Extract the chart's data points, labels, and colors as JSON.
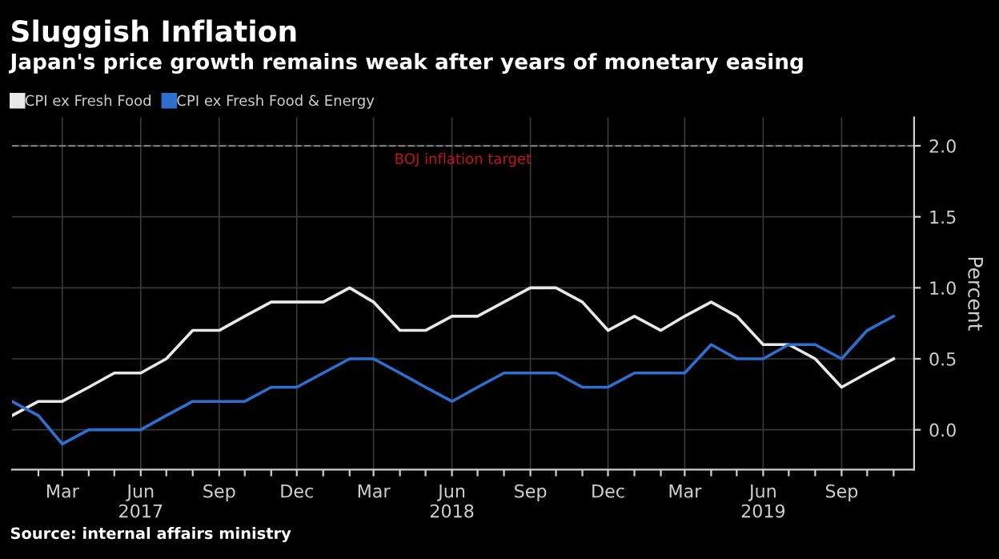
{
  "chart_data": {
    "type": "line",
    "title": "Sluggish Inflation",
    "subtitle": "Japan's price growth remains weak after years of monetary easing",
    "ylabel": "Percent",
    "x": [
      "2017-01",
      "2017-02",
      "2017-03",
      "2017-04",
      "2017-05",
      "2017-06",
      "2017-07",
      "2017-08",
      "2017-09",
      "2017-10",
      "2017-11",
      "2017-12",
      "2018-01",
      "2018-02",
      "2018-03",
      "2018-04",
      "2018-05",
      "2018-06",
      "2018-07",
      "2018-08",
      "2018-09",
      "2018-10",
      "2018-11",
      "2018-12",
      "2019-01",
      "2019-02",
      "2019-03",
      "2019-04",
      "2019-05",
      "2019-06",
      "2019-07",
      "2019-08",
      "2019-09",
      "2019-10",
      "2019-11"
    ],
    "series": [
      {
        "name": "CPI ex Fresh Food",
        "color": "#e8e8e8",
        "values": [
          0.1,
          0.2,
          0.2,
          0.3,
          0.4,
          0.4,
          0.5,
          0.7,
          0.7,
          0.8,
          0.9,
          0.9,
          0.9,
          1.0,
          0.9,
          0.7,
          0.7,
          0.8,
          0.8,
          0.9,
          1.0,
          1.0,
          0.9,
          0.7,
          0.8,
          0.7,
          0.8,
          0.9,
          0.8,
          0.6,
          0.6,
          0.5,
          0.3,
          0.4,
          0.5
        ]
      },
      {
        "name": "CPI ex Fresh Food & Energy",
        "color": "#2f6fd0",
        "values": [
          0.2,
          0.1,
          -0.1,
          0.0,
          0.0,
          0.0,
          0.1,
          0.2,
          0.2,
          0.2,
          0.3,
          0.3,
          0.4,
          0.5,
          0.5,
          0.4,
          0.3,
          0.2,
          0.3,
          0.4,
          0.4,
          0.4,
          0.3,
          0.3,
          0.4,
          0.4,
          0.4,
          0.6,
          0.5,
          0.5,
          0.6,
          0.6,
          0.5,
          0.7,
          0.8
        ]
      }
    ],
    "xlim": [
      "2017-01",
      "2019-11-25"
    ],
    "xticks": [
      {
        "value": "2017-02",
        "label": null
      },
      {
        "value": "2017-03",
        "label": "Mar"
      },
      {
        "value": "2017-04",
        "label": null
      },
      {
        "value": "2017-05",
        "label": null
      },
      {
        "value": "2017-06",
        "label": "Jun\n2017"
      },
      {
        "value": "2017-07",
        "label": null
      },
      {
        "value": "2017-08",
        "label": null
      },
      {
        "value": "2017-09",
        "label": "Sep"
      },
      {
        "value": "2017-10",
        "label": null
      },
      {
        "value": "2017-11",
        "label": null
      },
      {
        "value": "2017-12",
        "label": "Dec"
      },
      {
        "value": "2018-01",
        "label": null
      },
      {
        "value": "2018-02",
        "label": null
      },
      {
        "value": "2018-03",
        "label": "Mar"
      },
      {
        "value": "2018-04",
        "label": null
      },
      {
        "value": "2018-05",
        "label": null
      },
      {
        "value": "2018-06",
        "label": "Jun\n2018"
      },
      {
        "value": "2018-07",
        "label": null
      },
      {
        "value": "2018-08",
        "label": null
      },
      {
        "value": "2018-09",
        "label": "Sep"
      },
      {
        "value": "2018-10",
        "label": null
      },
      {
        "value": "2018-11",
        "label": null
      },
      {
        "value": "2018-12",
        "label": "Dec"
      },
      {
        "value": "2019-01",
        "label": null
      },
      {
        "value": "2019-02",
        "label": null
      },
      {
        "value": "2019-03",
        "label": "Mar"
      },
      {
        "value": "2019-04",
        "label": null
      },
      {
        "value": "2019-05",
        "label": null
      },
      {
        "value": "2019-06",
        "label": "Jun\n2019"
      },
      {
        "value": "2019-07",
        "label": null
      },
      {
        "value": "2019-08",
        "label": null
      },
      {
        "value": "2019-09",
        "label": "Sep"
      },
      {
        "value": "2019-10",
        "label": null
      },
      {
        "value": "2019-11",
        "label": null
      }
    ],
    "ylim": [
      -0.28,
      2.2
    ],
    "yticks": [
      {
        "value": 0,
        "label": "0.0"
      },
      {
        "value": 0.5,
        "label": "0.5"
      },
      {
        "value": 1,
        "label": "1.0"
      },
      {
        "value": 1.5,
        "label": "1.5"
      },
      {
        "value": 2,
        "label": "2.0"
      }
    ],
    "ref_lines": [
      {
        "axis": "y",
        "value": 2.0,
        "label": "BOJ inflation target",
        "color": "#7a7a7a",
        "line_style": "dashed"
      }
    ],
    "grid": true,
    "legend": "top left",
    "line_style": "solid",
    "marker": "none",
    "annotations": [
      "Source: internal affairs ministry"
    ]
  }
}
